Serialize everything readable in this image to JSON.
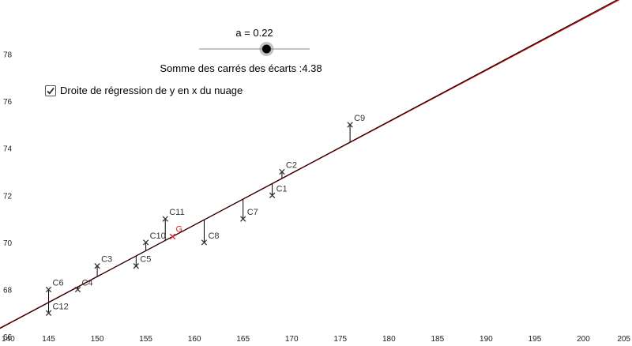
{
  "slider": {
    "label": "a = 0.22",
    "value": 0.22,
    "min": -1,
    "max": 1
  },
  "sum_label": "Somme des carrés des écarts :4.38",
  "checkbox": {
    "label": "Droite de régression de y en x du nuage",
    "checked": true
  },
  "colors": {
    "regression": "#cc0000",
    "line": "#000000",
    "points": "#333333",
    "G": "#dd2222",
    "axis_text": "#222222"
  },
  "chart_data": {
    "type": "scatter",
    "xlim": [
      140,
      205
    ],
    "ylim": [
      65.6,
      80.3
    ],
    "x_ticks": [
      "140",
      "145",
      "150",
      "155",
      "160",
      "165",
      "170",
      "175",
      "180",
      "185",
      "190",
      "195",
      "200",
      "205"
    ],
    "y_ticks": [
      "66",
      "68",
      "70",
      "72",
      "74",
      "76",
      "78"
    ],
    "points": [
      {
        "name": "C1",
        "x": 168,
        "y": 72
      },
      {
        "name": "C2",
        "x": 169,
        "y": 73
      },
      {
        "name": "C3",
        "x": 150,
        "y": 69
      },
      {
        "name": "C4",
        "x": 148,
        "y": 68
      },
      {
        "name": "C5",
        "x": 154,
        "y": 69
      },
      {
        "name": "C6",
        "x": 145,
        "y": 68
      },
      {
        "name": "C7",
        "x": 165,
        "y": 71
      },
      {
        "name": "C8",
        "x": 161,
        "y": 70
      },
      {
        "name": "C9",
        "x": 176,
        "y": 75
      },
      {
        "name": "C10",
        "x": 155,
        "y": 70
      },
      {
        "name": "C11",
        "x": 157,
        "y": 71
      },
      {
        "name": "C12",
        "x": 145,
        "y": 67
      }
    ],
    "G": {
      "name": "G",
      "x": 157.75,
      "y": 70.25
    },
    "line": {
      "slope": 0.22
    },
    "regression": {
      "slope": 0.219
    }
  }
}
